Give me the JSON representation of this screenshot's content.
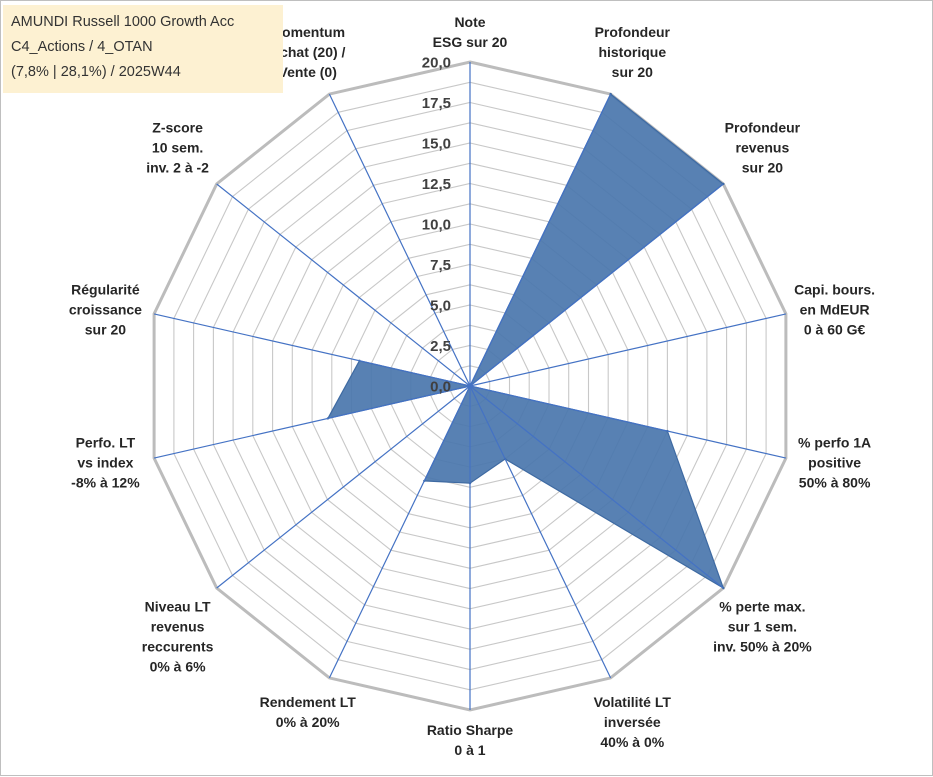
{
  "info": {
    "line1": "AMUNDI Russell 1000 Growth Acc",
    "line2": "C4_Actions / 4_OTAN",
    "line3": "(7,8% | 28,1%) / 2025W44"
  },
  "colors": {
    "fill": "#4a76ad",
    "fill_stroke": "#3e6aa2",
    "spoke": "#4472c4",
    "grid": "#c8c8c8",
    "outer_grid": "#bcbcbc"
  },
  "chart_data": {
    "type": "radar",
    "axis_range": [
      0,
      20
    ],
    "tick_step": 2.5,
    "grid_step": 1.25,
    "tick_labels": [
      "0,0",
      "2,5",
      "5,0",
      "7,5",
      "10,0",
      "12,5",
      "15,0",
      "17,5",
      "20,0"
    ],
    "axes": [
      {
        "label": [
          "Note",
          "ESG sur 20"
        ],
        "value": 0
      },
      {
        "label": [
          "Profondeur",
          "historique",
          "sur 20"
        ],
        "value": 20
      },
      {
        "label": [
          "Profondeur",
          "revenus",
          "sur 20"
        ],
        "value": 20
      },
      {
        "label": [
          "Capi. bours.",
          "en MdEUR",
          "0 à 60 G€"
        ],
        "value": 0
      },
      {
        "label": [
          "% perfo 1A",
          "positive",
          "50% à 80%"
        ],
        "value": 12.5
      },
      {
        "label": [
          "% perte max.",
          "sur 1 sem.",
          "inv. 50% à 20%"
        ],
        "value": 20
      },
      {
        "label": [
          "Volatilité LT",
          "inversée",
          "40% à 0%"
        ],
        "value": 5
      },
      {
        "label": [
          "Ratio Sharpe",
          "0 à 1"
        ],
        "value": 6
      },
      {
        "label": [
          "Rendement LT",
          "0% à 20%"
        ],
        "value": 6.5
      },
      {
        "label": [
          "Niveau LT",
          "revenus",
          "reccurents",
          "0% à 6%"
        ],
        "value": 0
      },
      {
        "label": [
          "Perfo. LT",
          "vs index",
          "-8% à 12%"
        ],
        "value": 9
      },
      {
        "label": [
          "Régularité",
          "croissance",
          "sur 20"
        ],
        "value": 7
      },
      {
        "label": [
          "Z-score",
          "10 sem.",
          "inv. 2 à -2"
        ],
        "value": 0
      },
      {
        "label": [
          "Momentum",
          "Achat (20) /",
          "Vente (0)"
        ],
        "value": 0
      }
    ]
  }
}
